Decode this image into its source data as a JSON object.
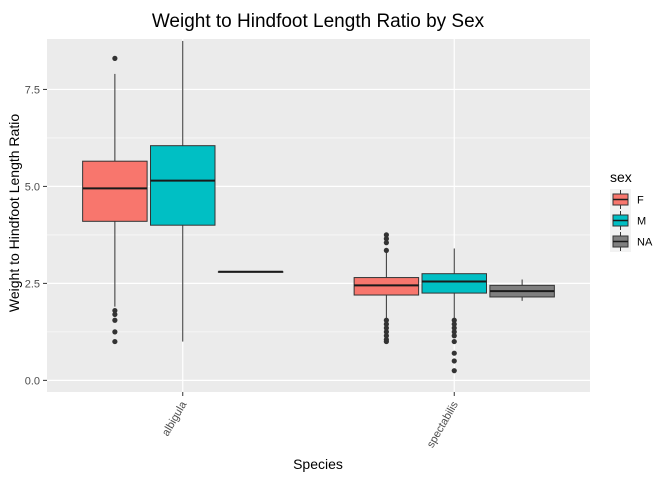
{
  "chart_data": {
    "type": "boxplot",
    "title": "Weight to Hindfoot Length Ratio by Sex",
    "xlabel": "Species",
    "ylabel": "Weight to Hindfoot Length Ratio",
    "ylim": [
      -0.3,
      8.8
    ],
    "yticks": [
      0.0,
      2.5,
      5.0,
      7.5
    ],
    "ytick_labels": [
      "0.0",
      "2.5",
      "5.0",
      "7.5"
    ],
    "categories": [
      "albigula",
      "spectabilis"
    ],
    "x_tick_rotation": "angled",
    "grid": true,
    "legend": {
      "title": "sex",
      "position": "right",
      "entries": [
        "F",
        "M",
        "NA"
      ]
    },
    "series": [
      {
        "name": "F",
        "color": "#F8766D",
        "boxes": [
          {
            "category": "albigula",
            "whisker_low": 1.9,
            "q1": 4.1,
            "median": 4.95,
            "q3": 5.65,
            "whisker_high": 7.9,
            "outliers": [
              8.3,
              1.8,
              1.7,
              1.55,
              1.25,
              1.0
            ]
          },
          {
            "category": "spectabilis",
            "whisker_low": 1.6,
            "q1": 2.2,
            "median": 2.45,
            "q3": 2.65,
            "whisker_high": 3.3,
            "outliers": [
              3.75,
              3.65,
              3.55,
              3.35,
              1.55,
              1.45,
              1.35,
              1.25,
              1.15,
              1.05,
              1.0
            ]
          }
        ]
      },
      {
        "name": "M",
        "color": "#00BFC4",
        "boxes": [
          {
            "category": "albigula",
            "whisker_low": 1.0,
            "q1": 4.0,
            "median": 5.15,
            "q3": 6.05,
            "whisker_high": 8.75,
            "outliers": []
          },
          {
            "category": "spectabilis",
            "whisker_low": 1.6,
            "q1": 2.25,
            "median": 2.55,
            "q3": 2.75,
            "whisker_high": 3.4,
            "outliers": [
              1.55,
              1.45,
              1.35,
              1.25,
              1.15,
              1.0,
              0.7,
              0.5,
              0.25
            ]
          }
        ]
      },
      {
        "name": "NA",
        "color": "#7F7F7F",
        "boxes": [
          {
            "category": "albigula",
            "whisker_low": 2.8,
            "q1": 2.8,
            "median": 2.8,
            "q3": 2.8,
            "whisker_high": 2.8,
            "outliers": []
          },
          {
            "category": "spectabilis",
            "whisker_low": 2.05,
            "q1": 2.15,
            "median": 2.3,
            "q3": 2.45,
            "whisker_high": 2.6,
            "outliers": []
          }
        ]
      }
    ]
  }
}
